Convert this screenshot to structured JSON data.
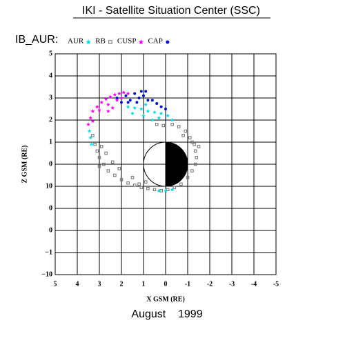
{
  "chart_data": {
    "type": "scatter",
    "title": "IKI - Satellite Situation Center (SSC)",
    "legend_title": "IB_AUR:",
    "xlabel": "X GSM (RE)",
    "ylabel": "Z GSM (RE)",
    "footer": "August    1999",
    "xlim": [
      5,
      -5
    ],
    "ylim": [
      -5,
      5
    ],
    "xticks": [
      5,
      4,
      3,
      2,
      1,
      0,
      -1,
      -2,
      -3,
      -4,
      -5
    ],
    "yticks": [
      5,
      4,
      3,
      2,
      1,
      0,
      {
        "value": -1,
        "label": "10"
      },
      {
        "value": -2,
        "label": "0"
      },
      {
        "value": -3,
        "label": "0"
      },
      {
        "value": -4,
        "label": "−1"
      },
      {
        "value": -5,
        "label": "−10"
      }
    ],
    "grid": true,
    "series": [
      {
        "name": "RB",
        "color": "#707070",
        "marker": "square",
        "x": [
          3.3,
          3.2,
          3.1,
          3.0,
          2.8,
          2.6,
          2.3,
          2.0,
          1.7,
          1.4,
          1.1,
          0.8,
          0.5,
          0.2,
          -0.1,
          -0.4,
          -0.7,
          -1.0,
          -1.2,
          -1.35,
          -1.4,
          -1.35,
          -1.3,
          -1.1,
          -0.9,
          -0.6,
          -0.3,
          0.1,
          0.4,
          2.9,
          2.7,
          2.4,
          2.1,
          1.5,
          0.9,
          -1.2,
          -0.8,
          3.0,
          1.2,
          -1.5
        ],
        "y": [
          1.3,
          0.9,
          0.6,
          0.3,
          0,
          -0.3,
          -0.5,
          -0.7,
          -0.85,
          -0.95,
          -1.05,
          -1.1,
          -1.15,
          -1.2,
          -1.15,
          -1.05,
          -0.9,
          -0.6,
          -0.3,
          0,
          0.3,
          0.6,
          0.9,
          1.2,
          1.5,
          1.7,
          1.8,
          1.75,
          1.8,
          0.8,
          0.5,
          0.1,
          -0.2,
          -0.6,
          -0.8,
          1.0,
          1.3,
          -0.1,
          -0.9,
          0.8
        ]
      },
      {
        "name": "AUR",
        "color": "#00e0e8",
        "marker": "star",
        "x": [
          3.45,
          3.4,
          3.35,
          1.7,
          1.4,
          1.1,
          0.8,
          0.5,
          0.2,
          -0.1,
          -0.3,
          1.5,
          1.0,
          0.6,
          0.3,
          0.9,
          0.0,
          -0.3,
          0.3
        ],
        "y": [
          1.5,
          1.2,
          0.9,
          2.6,
          2.55,
          2.5,
          2.4,
          2.35,
          2.3,
          2.2,
          2.0,
          2.3,
          2.2,
          2.0,
          2.1,
          2.7,
          -1.2,
          -1.15,
          -1.2
        ]
      },
      {
        "name": "CUSP",
        "color": "#ff00ff",
        "marker": "star",
        "x": [
          3.5,
          3.4,
          3.3,
          3.1,
          2.9,
          2.7,
          2.5,
          2.3,
          2.1,
          1.9,
          1.7,
          3.3,
          3.0,
          2.6,
          2.2,
          2.0,
          2.6,
          2.4
        ],
        "y": [
          1.8,
          2.1,
          2.4,
          2.6,
          2.8,
          2.95,
          3.05,
          3.15,
          3.2,
          3.25,
          3.2,
          1.95,
          2.45,
          2.7,
          2.9,
          3.0,
          2.4,
          2.55
        ]
      },
      {
        "name": "CAP",
        "color": "#0010d0",
        "marker": "dot",
        "x": [
          2.2,
          2.0,
          1.8,
          1.6,
          1.4,
          1.2,
          1.0,
          0.8,
          0.6,
          0.4,
          0.2,
          0.0,
          1.7,
          1.3,
          0.9,
          1.1
        ],
        "y": [
          3.0,
          2.8,
          3.1,
          2.9,
          3.2,
          3.0,
          3.1,
          2.9,
          2.9,
          2.75,
          2.6,
          2.5,
          2.8,
          2.8,
          3.3,
          3.3
        ]
      }
    ]
  }
}
